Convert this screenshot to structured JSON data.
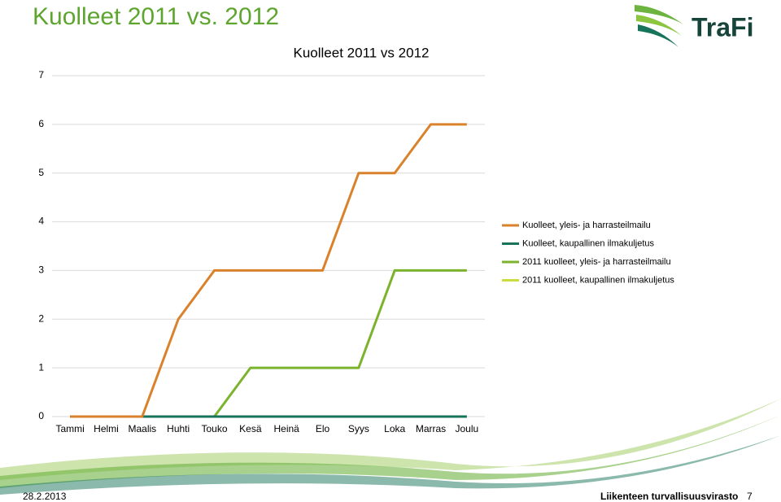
{
  "slide": {
    "title": "Kuolleet 2011 vs. 2012",
    "logo": "TraFi",
    "date": "28.2.2013",
    "organization": "Liikenteen turvallisuusvirasto",
    "page": "7"
  },
  "chart_data": {
    "type": "line",
    "title": "Kuolleet 2011 vs 2012",
    "categories": [
      "Tammi",
      "Helmi",
      "Maalis",
      "Huhti",
      "Touko",
      "Kesä",
      "Heinä",
      "Elo",
      "Syys",
      "Loka",
      "Marras",
      "Joulu"
    ],
    "series": [
      {
        "name": "Kuolleet, yleis- ja harrasteilmailu",
        "color": "#d9822b",
        "values": [
          0,
          0,
          0,
          2,
          3,
          3,
          3,
          3,
          5,
          5,
          6,
          6
        ]
      },
      {
        "name": "Kuolleet, kaupallinen ilmakuljetus",
        "color": "#17745a",
        "values": [
          0,
          0,
          0,
          0,
          0,
          0,
          0,
          0,
          0,
          0,
          0,
          0
        ]
      },
      {
        "name": "2011 kuolleet, yleis- ja harrasteilmailu",
        "color": "#7cb32c",
        "values": [
          0,
          0,
          0,
          0,
          0,
          1,
          1,
          1,
          1,
          3,
          3,
          3
        ]
      },
      {
        "name": "2011 kuolleet, kaupallinen ilmakuljetus",
        "color": "#cbdc3e",
        "values": [
          0,
          0,
          0,
          0,
          0,
          0,
          0,
          0,
          0,
          0,
          0,
          0
        ]
      }
    ],
    "ylim": [
      0,
      7
    ],
    "yticks": [
      0,
      1,
      2,
      3,
      4,
      5,
      6,
      7
    ],
    "grid": true,
    "legend": "right"
  }
}
